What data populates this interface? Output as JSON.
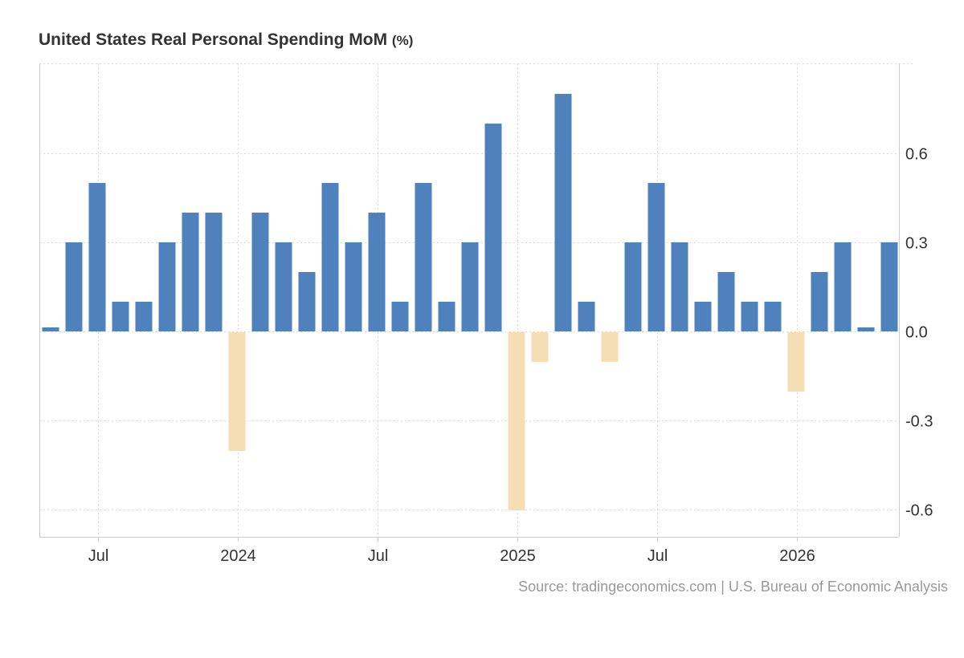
{
  "title": "United States Real Personal Spending MoM",
  "title_unit": "(%)",
  "source": "Source: tradingeconomics.com | U.S. Bureau of Economic Analysis",
  "colors": {
    "positive": "#4f81bd",
    "negative": "#f5deb3",
    "grid": "#d9d9d9",
    "axis": "#cccccc",
    "text": "#333333"
  },
  "chart_data": {
    "type": "bar",
    "title": "United States Real Personal Spending MoM",
    "ylabel": "",
    "ylim": [
      -0.7,
      0.8
    ],
    "grid": true,
    "y_axis_side": "right",
    "y_ticks": [
      {
        "value": 0.6,
        "label": "0.6"
      },
      {
        "value": 0.3,
        "label": "0.3"
      },
      {
        "value": 0.0,
        "label": "0.0"
      },
      {
        "value": -0.3,
        "label": "-0.3"
      },
      {
        "value": -0.6,
        "label": "-0.6"
      }
    ],
    "x_ticks": [
      {
        "value": "2023-07",
        "label": "Jul"
      },
      {
        "value": "2024-01",
        "label": "2024"
      },
      {
        "value": "2024-07",
        "label": "Jul"
      },
      {
        "value": "2025-01",
        "label": "2025"
      },
      {
        "value": "2025-07",
        "label": "Jul"
      },
      {
        "value": "2026-01",
        "label": "2026"
      }
    ],
    "categories": [
      "2023-05",
      "2023-06",
      "2023-07",
      "2023-08",
      "2023-09",
      "2023-10",
      "2023-11",
      "2023-12",
      "2024-01",
      "2024-02",
      "2024-03",
      "2024-04",
      "2024-05",
      "2024-06",
      "2024-07",
      "2024-08",
      "2024-09",
      "2024-10",
      "2024-11",
      "2024-12",
      "2025-01",
      "2025-02",
      "2025-03",
      "2025-04",
      "2025-05",
      "2025-06",
      "2025-07",
      "2025-08",
      "2025-09",
      "2025-10",
      "2025-11",
      "2025-12",
      "2026-01",
      "2026-02",
      "2026-03",
      "2026-04",
      "2026-05"
    ],
    "values": [
      0.0,
      0.3,
      0.5,
      0.1,
      0.1,
      0.3,
      0.4,
      0.4,
      -0.4,
      0.4,
      0.3,
      0.2,
      0.5,
      0.3,
      0.4,
      0.1,
      0.5,
      0.1,
      0.3,
      0.7,
      -0.6,
      -0.1,
      0.8,
      0.1,
      -0.1,
      0.3,
      0.5,
      0.3,
      0.1,
      0.2,
      0.1,
      0.1,
      -0.2,
      0.2,
      0.3,
      0.0,
      0.3
    ]
  }
}
